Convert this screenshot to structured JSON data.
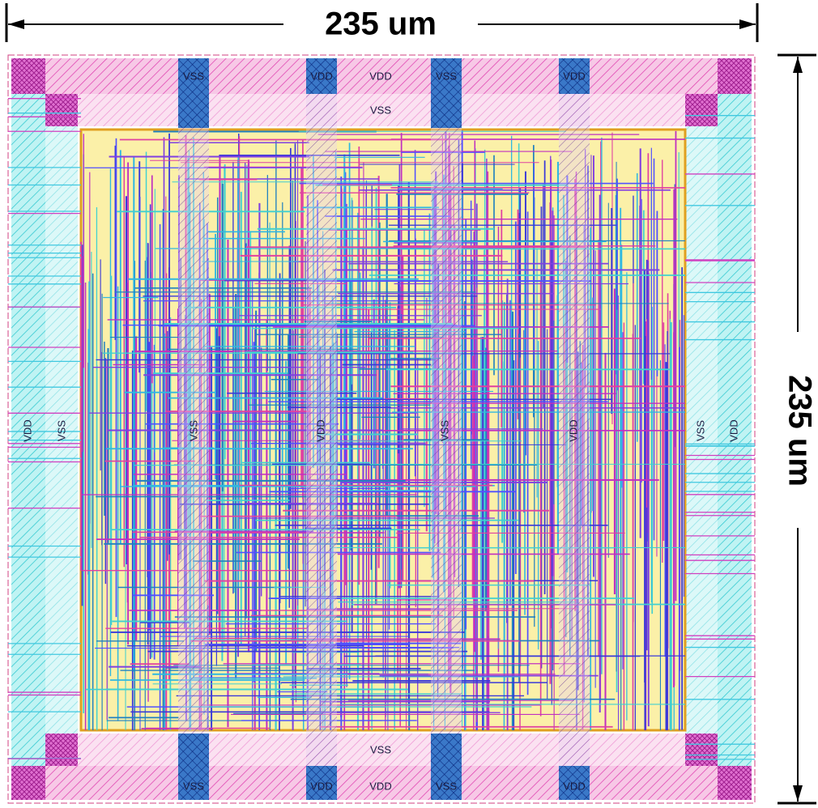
{
  "dimensions": {
    "width_label": "235 um",
    "height_label": "235 um"
  },
  "top_labels": [
    "VSS",
    "VDD",
    "VDD",
    "VSS",
    "VDD"
  ],
  "top_inner_labels": [
    "VSS"
  ],
  "middle_labels": [
    "VDD",
    "VSS",
    "VSS",
    "VDD",
    "VSS",
    "VDD",
    "VSS",
    "VDD"
  ],
  "bottom_inner_labels": [
    "VSS"
  ],
  "bottom_labels": [
    "VSS",
    "VDD",
    "VDD",
    "VSS",
    "VDD"
  ]
}
